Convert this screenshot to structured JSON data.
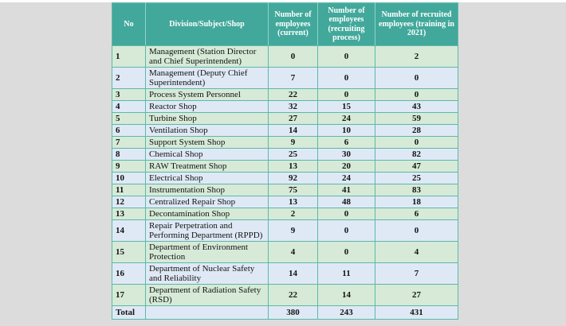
{
  "table": {
    "columns": [
      "No",
      "Division/Subject/Shop",
      "Number of employees (current)",
      "Number of employees (recruiting process)",
      "Number of recruited employees (training in 2021)"
    ],
    "rows": [
      {
        "no": "1",
        "division": "Management (Station Director and Chief Superintendent)",
        "current": "0",
        "recruiting": "0",
        "recruited": "2"
      },
      {
        "no": "2",
        "division": "Management (Deputy Chief Superintendent)",
        "current": "7",
        "recruiting": "0",
        "recruited": "0"
      },
      {
        "no": "3",
        "division": "Process System Personnel",
        "current": "22",
        "recruiting": "0",
        "recruited": "0"
      },
      {
        "no": "4",
        "division": "Reactor Shop",
        "current": "32",
        "recruiting": "15",
        "recruited": "43"
      },
      {
        "no": "5",
        "division": "Turbine Shop",
        "current": "27",
        "recruiting": "24",
        "recruited": "59"
      },
      {
        "no": "6",
        "division": "Ventilation Shop",
        "current": "14",
        "recruiting": "10",
        "recruited": "28"
      },
      {
        "no": "7",
        "division": "Support System Shop",
        "current": "9",
        "recruiting": "6",
        "recruited": "0"
      },
      {
        "no": "8",
        "division": "Chemical Shop",
        "current": "25",
        "recruiting": "30",
        "recruited": "82"
      },
      {
        "no": "9",
        "division": "RAW Treatment Shop",
        "current": "13",
        "recruiting": "20",
        "recruited": "47"
      },
      {
        "no": "10",
        "division": "Electrical Shop",
        "current": "92",
        "recruiting": "24",
        "recruited": "25"
      },
      {
        "no": "11",
        "division": "Instrumentation Shop",
        "current": "75",
        "recruiting": "41",
        "recruited": "83"
      },
      {
        "no": "12",
        "division": "Centralized Repair Shop",
        "current": "13",
        "recruiting": "48",
        "recruited": "18"
      },
      {
        "no": "13",
        "division": "Decontamination Shop",
        "current": "2",
        "recruiting": "0",
        "recruited": "6"
      },
      {
        "no": "14",
        "division": "Repair Perpetration and Performing Department (RPPD)",
        "current": "9",
        "recruiting": "0",
        "recruited": "0"
      },
      {
        "no": "15",
        "division": "Department of Environment Protection",
        "current": "4",
        "recruiting": "0",
        "recruited": "4"
      },
      {
        "no": "16",
        "division": "Department of Nuclear Safety and Reliability",
        "current": "14",
        "recruiting": "11",
        "recruited": "7"
      },
      {
        "no": "17",
        "division": "Department of Radiation Safety (RSD)",
        "current": "22",
        "recruiting": "14",
        "recruited": "27"
      }
    ],
    "total": {
      "label": "Total",
      "current": "380",
      "recruiting": "243",
      "recruited": "431"
    }
  },
  "chart_data": {
    "type": "table",
    "title": "",
    "columns": [
      "No",
      "Division/Subject/Shop",
      "Number of employees (current)",
      "Number of employees (recruiting process)",
      "Number of recruited employees (training in 2021)"
    ],
    "totals": {
      "current": 380,
      "recruiting_process": 243,
      "recruited_training_2021": 431
    }
  },
  "colors": {
    "page_bg": "#dcdcdc",
    "header_bg": "#3fa99b",
    "header_text": "#ffffff",
    "row_green": "#d6ead7",
    "row_blue": "#dfe9f5",
    "border": "#5cb8aa"
  }
}
